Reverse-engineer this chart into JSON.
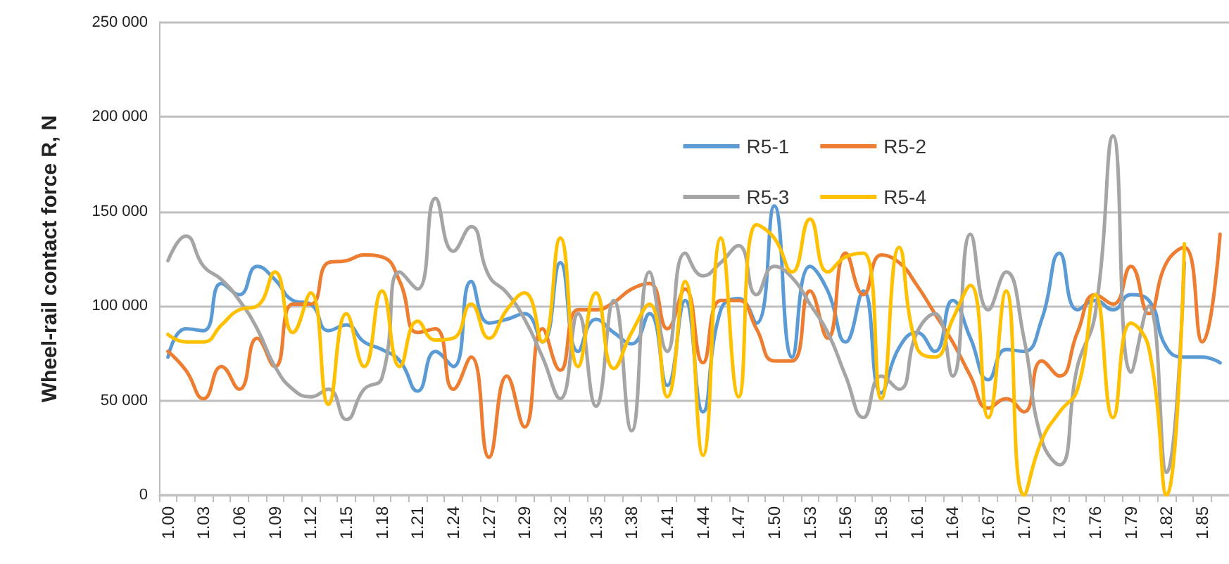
{
  "chart_data": {
    "type": "line",
    "ylabel": "Wheel-rail contact force R, N",
    "categories": [
      "1.00",
      null,
      "1.03",
      null,
      "1.06",
      null,
      "1.09",
      null,
      "1.12",
      null,
      "1.15",
      null,
      "1.18",
      null,
      "1.21",
      null,
      "1.24",
      null,
      "1.27",
      null,
      "1.29",
      null,
      "1.32",
      null,
      "1.35",
      null,
      "1.38",
      null,
      "1.41",
      null,
      "1.44",
      null,
      "1.47",
      null,
      "1.50",
      null,
      "1.53",
      null,
      "1.56",
      null,
      "1.58",
      null,
      "1.61",
      null,
      "1.64",
      null,
      "1.67",
      null,
      "1.70",
      null,
      "1.73",
      null,
      "1.76",
      null,
      "1.79",
      null,
      "1.82",
      null,
      "1.85",
      null
    ],
    "series": [
      {
        "name": "R5-1",
        "color": "#5b9bd5",
        "values": [
          73000,
          88000,
          87000,
          112000,
          106000,
          121000,
          114000,
          103000,
          101000,
          87000,
          90000,
          81000,
          77000,
          71000,
          55000,
          76000,
          68000,
          113000,
          91000,
          93000,
          96000,
          81000,
          123000,
          76000,
          93000,
          86000,
          80000,
          96000,
          58000,
          103000,
          44000,
          98000,
          104000,
          91000,
          153000,
          73000,
          121000,
          108000,
          81000,
          108000,
          54000,
          78000,
          86000,
          76000,
          103000,
          83000,
          61000,
          77000,
          76000,
          93000,
          128000,
          98000,
          103000,
          98000,
          106000,
          103000,
          78000,
          73000,
          73000,
          70000
        ]
      },
      {
        "name": "R5-2",
        "color": "#ed7d31",
        "values": [
          76000,
          66000,
          51000,
          68000,
          56000,
          83000,
          68000,
          101000,
          101000,
          123000,
          124000,
          127000,
          126000,
          113000,
          86000,
          88000,
          56000,
          73000,
          20000,
          63000,
          36000,
          88000,
          66000,
          98000,
          98000,
          102000,
          109000,
          112000,
          88000,
          109000,
          70000,
          103000,
          103000,
          88000,
          71000,
          71000,
          108000,
          83000,
          128000,
          106000,
          127000,
          123000,
          111000,
          96000,
          81000,
          63000,
          46000,
          51000,
          44000,
          71000,
          63000,
          86000,
          106000,
          101000,
          121000,
          96000,
          123000,
          131000,
          81000,
          138000
        ]
      },
      {
        "name": "R5-3",
        "color": "#a5a5a5",
        "values": [
          124000,
          137000,
          121000,
          114000,
          103000,
          88000,
          68000,
          56000,
          52000,
          56000,
          40000,
          56000,
          62000,
          118000,
          109000,
          157000,
          129000,
          142000,
          116000,
          107000,
          93000,
          73000,
          51000,
          96000,
          47000,
          103000,
          34000,
          118000,
          76000,
          128000,
          116000,
          123000,
          132000,
          106000,
          121000,
          115000,
          101000,
          86000,
          63000,
          41000,
          63000,
          56000,
          86000,
          96000,
          63000,
          138000,
          98000,
          118000,
          83000,
          29000,
          16000,
          68000,
          96000,
          190000,
          65000,
          100000,
          12000,
          123000,
          null,
          null
        ]
      },
      {
        "name": "R5-4",
        "color": "#ffc000",
        "values": [
          85000,
          81000,
          81000,
          90000,
          98000,
          100000,
          118000,
          86000,
          107000,
          48000,
          96000,
          68000,
          108000,
          68000,
          92000,
          82000,
          83000,
          101000,
          83000,
          98000,
          107000,
          81000,
          136000,
          68000,
          107000,
          67000,
          86000,
          101000,
          52000,
          113000,
          21000,
          136000,
          52000,
          143000,
          136000,
          118000,
          146000,
          118000,
          126000,
          128000,
          51000,
          131000,
          78000,
          73000,
          93000,
          111000,
          41000,
          108000,
          0,
          29000,
          44000,
          56000,
          106000,
          41000,
          91000,
          78000,
          0,
          133000,
          null,
          null
        ]
      }
    ],
    "ylim": [
      0,
      250000
    ],
    "yticks": [
      0,
      {
        "value": 50000,
        "label": "50 000"
      },
      {
        "value": 100000,
        "label": "100 000"
      },
      {
        "value": 150000,
        "label": "150 000"
      },
      {
        "value": 200000,
        "label": "200 000"
      },
      {
        "value": 250000,
        "label": "250 000"
      }
    ],
    "grid": "y",
    "legend": "top right",
    "marker": "none",
    "line_style": "solid"
  }
}
